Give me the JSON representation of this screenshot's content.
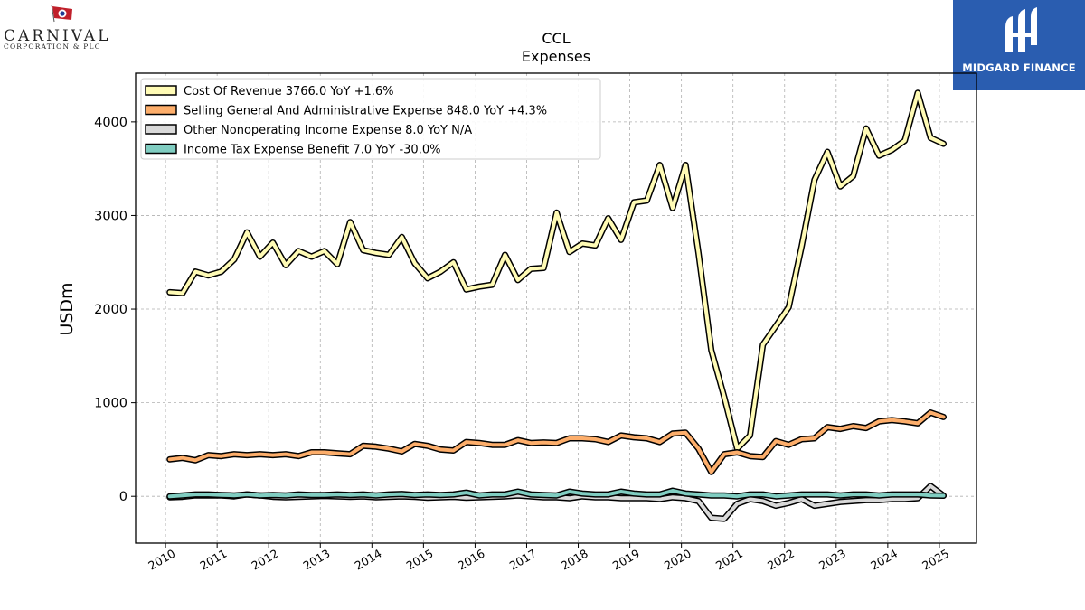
{
  "branding": {
    "left_logo_name": "CARNIVAL",
    "left_logo_sub": "CORPORATION & PLC",
    "right_logo_text": "MIDGARD FINANCE",
    "right_logo_bg": "#2a5db0"
  },
  "chart_data": {
    "type": "line",
    "title": "CCL",
    "subtitle": "Expenses",
    "xlabel": "",
    "ylabel": "USDm",
    "xlim": [
      2009.42,
      2025.72
    ],
    "ylim": [
      -500,
      4520
    ],
    "grid": true,
    "legend_position": "top-left",
    "x_ticks": [
      2010,
      2011,
      2012,
      2013,
      2014,
      2015,
      2016,
      2017,
      2018,
      2019,
      2020,
      2021,
      2022,
      2023,
      2024,
      2025
    ],
    "x_tick_labels": [
      "2010",
      "2011",
      "2012",
      "2013",
      "2014",
      "2015",
      "2016",
      "2017",
      "2018",
      "2019",
      "2020",
      "2021",
      "2022",
      "2023",
      "2024",
      "2025"
    ],
    "y_ticks": [
      0,
      1000,
      2000,
      3000,
      4000
    ],
    "y_tick_labels": [
      "0",
      "1000",
      "2000",
      "3000",
      "4000"
    ],
    "x": [
      2010.08,
      2010.33,
      2010.58,
      2010.83,
      2011.08,
      2011.33,
      2011.58,
      2011.83,
      2012.08,
      2012.33,
      2012.58,
      2012.83,
      2013.08,
      2013.33,
      2013.58,
      2013.83,
      2014.08,
      2014.33,
      2014.58,
      2014.83,
      2015.08,
      2015.33,
      2015.58,
      2015.83,
      2016.08,
      2016.33,
      2016.58,
      2016.83,
      2017.08,
      2017.33,
      2017.58,
      2017.83,
      2018.08,
      2018.33,
      2018.58,
      2018.83,
      2019.08,
      2019.33,
      2019.58,
      2019.83,
      2020.08,
      2020.33,
      2020.58,
      2020.83,
      2021.08,
      2021.33,
      2021.58,
      2021.83,
      2022.08,
      2022.33,
      2022.58,
      2022.83,
      2023.08,
      2023.33,
      2023.58,
      2023.83,
      2024.08,
      2024.33,
      2024.58,
      2024.83,
      2025.08
    ],
    "series": [
      {
        "name": "Cost Of Revenue",
        "legend": "Cost Of Revenue  3766.0 YoY +1.6%",
        "color": "#fffbb5",
        "values": [
          2180,
          2170,
          2400,
          2360,
          2400,
          2530,
          2820,
          2560,
          2710,
          2470,
          2620,
          2560,
          2620,
          2480,
          2930,
          2630,
          2600,
          2580,
          2770,
          2490,
          2330,
          2400,
          2500,
          2210,
          2240,
          2260,
          2580,
          2310,
          2430,
          2440,
          3030,
          2610,
          2700,
          2680,
          2970,
          2740,
          3140,
          3160,
          3540,
          3080,
          3540,
          2600,
          1560,
          1060,
          510,
          650,
          1620,
          1820,
          2020,
          2670,
          3380,
          3680,
          3310,
          3420,
          3930,
          3640,
          3700,
          3800,
          4310,
          3830,
          3766
        ]
      },
      {
        "name": "Selling General And Administrative Expense",
        "legend": "Selling General And Administrative Expense  848.0 YoY +4.3%",
        "color": "#fdae6b",
        "values": [
          395,
          410,
          385,
          440,
          430,
          450,
          440,
          450,
          440,
          450,
          430,
          470,
          470,
          460,
          450,
          540,
          530,
          510,
          480,
          560,
          540,
          500,
          490,
          580,
          570,
          550,
          550,
          600,
          570,
          575,
          570,
          620,
          620,
          610,
          580,
          650,
          630,
          620,
          580,
          670,
          680,
          510,
          260,
          450,
          470,
          430,
          420,
          590,
          550,
          610,
          620,
          740,
          720,
          750,
          730,
          800,
          815,
          800,
          780,
          895,
          848
        ]
      },
      {
        "name": "Other Nonoperating Income Expense",
        "legend": "Other Nonoperating Income Expense  8.0 YoY N/A",
        "color": "#d9d9d9",
        "values": [
          -10,
          -5,
          10,
          10,
          10,
          0,
          20,
          10,
          -5,
          -10,
          -5,
          0,
          5,
          0,
          -5,
          0,
          -10,
          -5,
          0,
          -5,
          -15,
          -10,
          -5,
          -15,
          -10,
          -5,
          0,
          10,
          0,
          -10,
          -10,
          -20,
          0,
          -10,
          -10,
          -20,
          -20,
          -20,
          -30,
          -10,
          -20,
          -50,
          -230,
          -240,
          -80,
          -30,
          -50,
          -100,
          -70,
          -30,
          -100,
          -80,
          -60,
          -50,
          -40,
          -40,
          -30,
          -30,
          -20,
          110,
          8
        ]
      },
      {
        "name": "Income Tax Expense Benefit",
        "legend": "Income Tax Expense Benefit  7.0 YoY -30.0%",
        "color": "#80cdc1",
        "values": [
          0,
          10,
          20,
          20,
          15,
          10,
          20,
          10,
          15,
          10,
          20,
          15,
          15,
          20,
          15,
          20,
          10,
          20,
          25,
          15,
          20,
          15,
          20,
          40,
          10,
          20,
          20,
          50,
          20,
          15,
          10,
          50,
          30,
          20,
          20,
          50,
          30,
          20,
          20,
          60,
          30,
          20,
          10,
          10,
          0,
          20,
          20,
          0,
          10,
          20,
          20,
          20,
          10,
          20,
          20,
          10,
          20,
          20,
          20,
          10,
          7
        ]
      }
    ]
  }
}
